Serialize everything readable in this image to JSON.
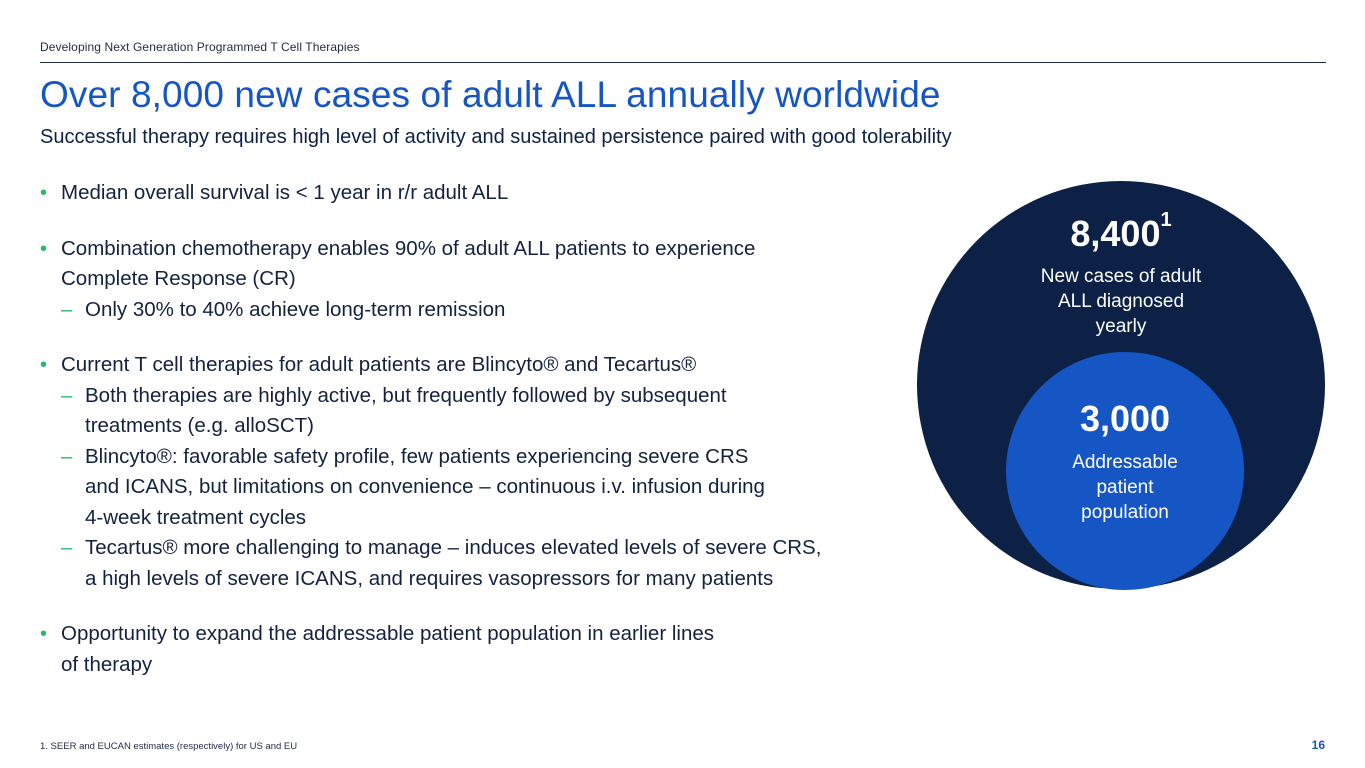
{
  "header": {
    "label": "Developing Next Generation Programmed T Cell Therapies"
  },
  "title": "Over 8,000 new cases of adult ALL annually worldwide",
  "subtitle": "Successful therapy requires high level of activity and sustained persistence paired with good tolerability",
  "bullets": {
    "b1": "Median overall survival is < 1 year in r/r adult ALL",
    "b2_line1": "Combination chemotherapy enables 90% of adult ALL patients to experience",
    "b2_line2": "Complete Response (CR)",
    "b2_sub1": "Only 30% to 40% achieve long-term remission",
    "b3": "Current T cell therapies for adult patients are Blincyto® and Tecartus®",
    "b3_sub1_line1": "Both therapies are highly active, but frequently followed by subsequent",
    "b3_sub1_line2": "treatments (e.g. alloSCT)",
    "b3_sub2_line1": "Blincyto®: favorable safety profile, few patients experiencing severe CRS",
    "b3_sub2_line2": "and ICANS, but limitations on convenience – continuous i.v. infusion during",
    "b3_sub2_line3": "4-week treatment cycles",
    "b3_sub3_line1": "Tecartus® more challenging to manage – induces elevated levels of severe CRS,",
    "b3_sub3_line2": "a high levels of severe ICANS, and requires vasopressors for many patients",
    "b4_line1": "Opportunity to expand the addressable patient population in earlier lines",
    "b4_line2": "of therapy"
  },
  "outer_circle": {
    "number": "8,400",
    "superscript": "1",
    "caption_line1": "New cases of adult",
    "caption_line2": "ALL diagnosed",
    "caption_line3": "yearly"
  },
  "inner_circle": {
    "number": "3,000",
    "caption_line1": "Addressable",
    "caption_line2": "patient",
    "caption_line3": "population"
  },
  "colors": {
    "navy": "#0c2145",
    "blue": "#1556c4",
    "green": "#2ab56b"
  },
  "footnote": "1. SEER and EUCAN estimates (respectively) for US and EU",
  "page_number": "16"
}
